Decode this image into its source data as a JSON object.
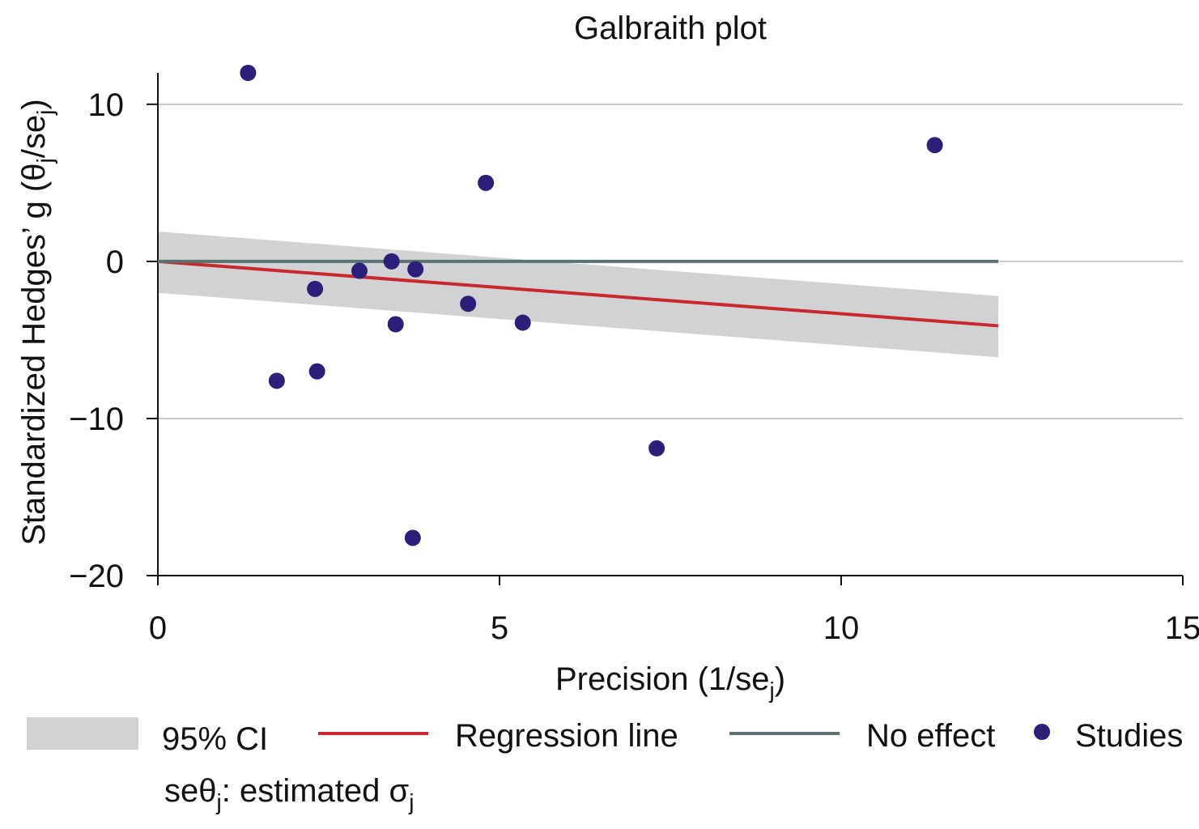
{
  "chart_data": {
    "type": "scatter",
    "title": "Galbraith plot",
    "x_label": [
      "Precision (1/se",
      "j",
      ")"
    ],
    "y_label": [
      "Standardized Hedges’ g (θ",
      "j",
      "/se",
      "j",
      ")"
    ],
    "note": [
      "seθ",
      "j",
      ": estimated σ",
      "j"
    ],
    "xlim": [
      0,
      15
    ],
    "xticks": [
      0,
      5,
      10,
      15
    ],
    "ylim": [
      -20,
      12
    ],
    "yticks": [
      -20,
      -10,
      0,
      10
    ],
    "grid": true,
    "band": {
      "name": "95% CI",
      "color": "#d1d2d4",
      "x": [
        0,
        12.3
      ],
      "upper": [
        1.9,
        -2.2
      ],
      "lower": [
        -2.0,
        -6.1
      ]
    },
    "series": [
      {
        "name": "Regression line",
        "type": "line",
        "color": "#c8282e",
        "x": [
          0,
          12.3
        ],
        "values": [
          0,
          -4.1
        ]
      },
      {
        "name": "No effect",
        "type": "line",
        "color": "#5a7370",
        "x": [
          0,
          12.3
        ],
        "values": [
          0,
          0
        ]
      },
      {
        "name": "Studies",
        "type": "scatter",
        "color": "#2c1f7a",
        "x": [
          1.32,
          1.74,
          2.3,
          2.33,
          2.95,
          3.42,
          3.48,
          3.77,
          3.73,
          4.54,
          4.8,
          5.34,
          7.3,
          11.37
        ],
        "values": [
          12.0,
          -7.6,
          -1.75,
          -7.0,
          -0.6,
          0.0,
          -4.0,
          -0.5,
          -17.6,
          -2.7,
          5.0,
          -3.9,
          -11.9,
          7.4
        ]
      }
    ]
  }
}
